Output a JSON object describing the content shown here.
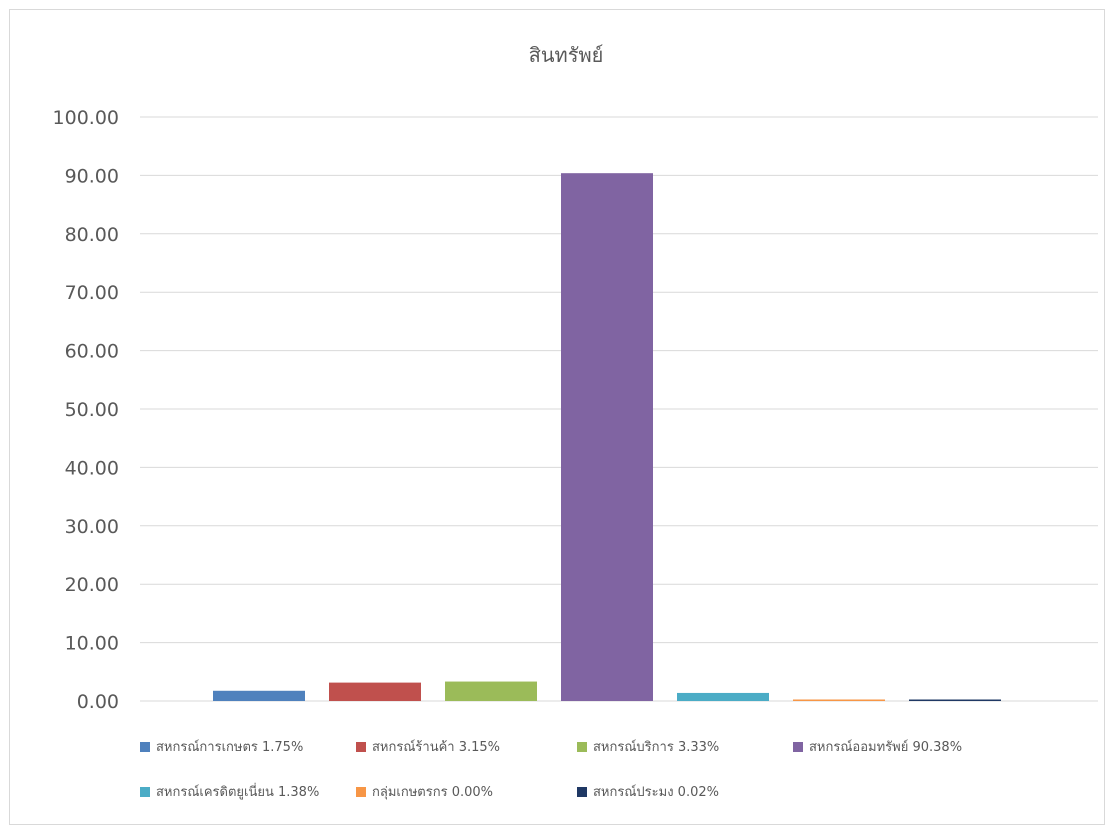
{
  "chart_data": {
    "type": "bar",
    "title": "สินทรัพย์",
    "xlabel": "",
    "ylabel": "",
    "ylim": [
      0,
      100
    ],
    "yticks": [
      "0.00",
      "10.00",
      "20.00",
      "30.00",
      "40.00",
      "50.00",
      "60.00",
      "70.00",
      "80.00",
      "90.00",
      "100.00"
    ],
    "grid": true,
    "legend_position": "bottom",
    "series": [
      {
        "name": "สหกรณ์การเกษตร 1.75%",
        "value": 1.75,
        "color": "#4f81bd"
      },
      {
        "name": "สหกรณ์ร้านค้า  3.15%",
        "value": 3.15,
        "color": "#c0504d"
      },
      {
        "name": "สหกรณ์บริการ  3.33%",
        "value": 3.33,
        "color": "#9bbb59"
      },
      {
        "name": "สหกรณ์ออมทรัพย์  90.38%",
        "value": 90.38,
        "color": "#8064a2"
      },
      {
        "name": "สหกรณ์เครดิตยูเนี่ยน  1.38%",
        "value": 1.38,
        "color": "#4bacc6"
      },
      {
        "name": "กลุ่มเกษตรกร 0.00%",
        "value": 0.0,
        "color": "#f79646"
      },
      {
        "name": "สหกรณ์ประมง  0.02%",
        "value": 0.02,
        "color": "#1f3864"
      }
    ]
  }
}
